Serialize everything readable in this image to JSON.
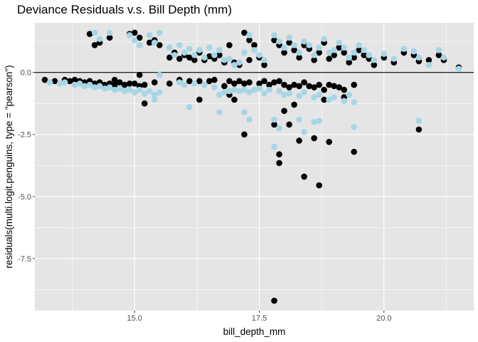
{
  "chart_data": {
    "type": "scatter",
    "title": "Deviance Residuals v.s. Bill Depth (mm)",
    "xlabel": "bill_depth_mm",
    "ylabel": "residuals(multi.logit.penguins, type = \"pearson\")",
    "xlim": [
      13.0,
      21.8
    ],
    "ylim": [
      -9.6,
      2.0
    ],
    "x_ticks": [
      15.0,
      17.5,
      20.0
    ],
    "x_tick_labels": [
      "15.0",
      "17.5",
      "20.0"
    ],
    "y_ticks": [
      0.0,
      -2.5,
      -5.0,
      -7.5
    ],
    "y_tick_labels": [
      "0.0",
      "-2.5",
      "-5.0",
      "-7.5"
    ],
    "grid": true,
    "hline": 0,
    "colors": {
      "panel_bg": "#e5e5e5",
      "grid": "#ffffff",
      "series_a": "#000000",
      "series_b": "#a6d6e6"
    },
    "series": [
      {
        "color": "#000000",
        "points": [
          [
            13.2,
            -0.3
          ],
          [
            13.4,
            -0.35
          ],
          [
            13.6,
            -0.3
          ],
          [
            13.7,
            -0.35
          ],
          [
            13.8,
            -0.3
          ],
          [
            13.9,
            -0.35
          ],
          [
            14.0,
            -0.4
          ],
          [
            14.1,
            -0.35
          ],
          [
            14.2,
            -0.45
          ],
          [
            14.3,
            -0.4
          ],
          [
            14.4,
            -0.5
          ],
          [
            14.5,
            -0.45
          ],
          [
            14.6,
            -0.5
          ],
          [
            14.7,
            -0.4
          ],
          [
            14.8,
            -0.5
          ],
          [
            14.9,
            -0.45
          ],
          [
            15.0,
            -0.45
          ],
          [
            15.1,
            -0.55
          ],
          [
            15.2,
            -0.5
          ],
          [
            15.1,
            -0.1
          ],
          [
            15.4,
            -0.4
          ],
          [
            15.7,
            -0.45
          ],
          [
            15.9,
            -0.3
          ],
          [
            16.1,
            -0.35
          ],
          [
            16.3,
            -0.35
          ],
          [
            16.6,
            -0.3
          ],
          [
            16.8,
            -0.55
          ],
          [
            16.9,
            -0.35
          ],
          [
            17.0,
            -0.45
          ],
          [
            17.1,
            -0.35
          ],
          [
            17.2,
            -0.45
          ],
          [
            17.3,
            -0.4
          ],
          [
            17.5,
            -0.45
          ],
          [
            17.6,
            -0.35
          ],
          [
            17.7,
            -0.5
          ],
          [
            17.8,
            -0.4
          ],
          [
            17.9,
            -0.35
          ],
          [
            18.0,
            -0.5
          ],
          [
            18.1,
            -0.6
          ],
          [
            18.2,
            -0.5
          ],
          [
            18.3,
            -0.55
          ],
          [
            18.4,
            -0.4
          ],
          [
            18.5,
            -0.55
          ],
          [
            18.6,
            -0.6
          ],
          [
            18.7,
            -0.5
          ],
          [
            18.8,
            -0.7
          ],
          [
            18.9,
            -0.5
          ],
          [
            19.0,
            -0.55
          ],
          [
            19.1,
            -0.6
          ],
          [
            19.2,
            -0.7
          ],
          [
            19.4,
            -0.5
          ],
          [
            14.6,
            -0.3
          ],
          [
            16.5,
            -0.35
          ],
          [
            15.2,
            -1.25
          ],
          [
            16.9,
            -0.9
          ],
          [
            17.0,
            -1.1
          ],
          [
            16.3,
            -1.1
          ],
          [
            18.0,
            -1.55
          ],
          [
            18.2,
            -1.3
          ],
          [
            18.8,
            -1.1
          ],
          [
            19.2,
            -1.0
          ],
          [
            17.2,
            -2.5
          ],
          [
            17.8,
            -2.1
          ],
          [
            18.1,
            -2.1
          ],
          [
            18.3,
            -2.75
          ],
          [
            18.6,
            -2.65
          ],
          [
            18.9,
            -2.8
          ],
          [
            19.4,
            -3.2
          ],
          [
            17.9,
            -3.3
          ],
          [
            17.9,
            -3.65
          ],
          [
            18.4,
            -4.2
          ],
          [
            18.7,
            -4.55
          ],
          [
            17.8,
            -9.2
          ],
          [
            20.7,
            -2.3
          ],
          [
            14.1,
            1.55
          ],
          [
            14.2,
            1.1
          ],
          [
            14.3,
            1.2
          ],
          [
            14.5,
            1.4
          ],
          [
            14.9,
            1.55
          ],
          [
            15.0,
            1.6
          ],
          [
            15.1,
            1.4
          ],
          [
            15.3,
            1.2
          ],
          [
            15.4,
            1.3
          ],
          [
            15.5,
            1.1
          ],
          [
            15.7,
            0.6
          ],
          [
            15.8,
            0.8
          ],
          [
            15.9,
            0.55
          ],
          [
            16.0,
            0.7
          ],
          [
            16.1,
            0.6
          ],
          [
            16.2,
            0.5
          ],
          [
            16.3,
            0.8
          ],
          [
            16.4,
            0.5
          ],
          [
            16.5,
            0.65
          ],
          [
            16.6,
            0.55
          ],
          [
            16.7,
            0.7
          ],
          [
            16.8,
            0.4
          ],
          [
            16.9,
            1.1
          ],
          [
            17.0,
            0.4
          ],
          [
            17.1,
            0.3
          ],
          [
            17.3,
            0.5
          ],
          [
            17.2,
            1.6
          ],
          [
            17.3,
            1.3
          ],
          [
            17.4,
            1.1
          ],
          [
            17.5,
            0.6
          ],
          [
            17.6,
            0.3
          ],
          [
            17.8,
            1.3
          ],
          [
            17.9,
            1.1
          ],
          [
            18.0,
            0.8
          ],
          [
            18.1,
            1.2
          ],
          [
            18.2,
            0.9
          ],
          [
            18.3,
            0.6
          ],
          [
            18.4,
            1.1
          ],
          [
            18.5,
            0.95
          ],
          [
            18.6,
            0.5
          ],
          [
            18.7,
            0.8
          ],
          [
            18.8,
            1.2
          ],
          [
            18.9,
            0.55
          ],
          [
            19.0,
            0.7
          ],
          [
            19.1,
            1.0
          ],
          [
            19.2,
            0.8
          ],
          [
            19.3,
            0.4
          ],
          [
            19.4,
            0.6
          ],
          [
            19.5,
            0.9
          ],
          [
            19.6,
            0.7
          ],
          [
            19.7,
            0.55
          ],
          [
            19.8,
            0.3
          ],
          [
            20.0,
            0.6
          ],
          [
            20.2,
            0.4
          ],
          [
            20.4,
            0.8
          ],
          [
            20.6,
            0.7
          ],
          [
            20.7,
            0.45
          ],
          [
            20.9,
            0.5
          ],
          [
            21.1,
            0.7
          ],
          [
            21.2,
            0.5
          ],
          [
            21.5,
            0.2
          ]
        ]
      },
      {
        "color": "#a6d6e6",
        "points": [
          [
            13.3,
            -0.4
          ],
          [
            13.5,
            -0.45
          ],
          [
            13.6,
            -0.4
          ],
          [
            13.8,
            -0.5
          ],
          [
            13.9,
            -0.45
          ],
          [
            14.0,
            -0.55
          ],
          [
            14.1,
            -0.5
          ],
          [
            14.2,
            -0.6
          ],
          [
            14.3,
            -0.55
          ],
          [
            14.4,
            -0.65
          ],
          [
            14.5,
            -0.6
          ],
          [
            14.6,
            -0.7
          ],
          [
            14.7,
            -0.65
          ],
          [
            14.8,
            -0.75
          ],
          [
            14.9,
            -0.7
          ],
          [
            15.0,
            -0.8
          ],
          [
            15.1,
            -0.7
          ],
          [
            15.2,
            -0.85
          ],
          [
            15.3,
            -0.75
          ],
          [
            15.4,
            -0.9
          ],
          [
            15.5,
            -0.8
          ],
          [
            15.5,
            -0.1
          ],
          [
            15.9,
            -0.4
          ],
          [
            16.0,
            -0.5
          ],
          [
            16.2,
            -0.45
          ],
          [
            16.4,
            -0.5
          ],
          [
            16.6,
            -0.6
          ],
          [
            16.7,
            -0.9
          ],
          [
            16.8,
            -0.8
          ],
          [
            16.9,
            -0.75
          ],
          [
            17.0,
            -0.7
          ],
          [
            17.1,
            -0.75
          ],
          [
            17.2,
            -0.7
          ],
          [
            17.3,
            -0.8
          ],
          [
            17.4,
            -0.7
          ],
          [
            17.5,
            -0.65
          ],
          [
            17.6,
            -0.85
          ],
          [
            17.7,
            -0.7
          ],
          [
            17.9,
            -0.75
          ],
          [
            18.0,
            -0.9
          ],
          [
            18.1,
            -0.85
          ],
          [
            18.3,
            -0.95
          ],
          [
            18.4,
            -0.8
          ],
          [
            18.6,
            -1.0
          ],
          [
            18.7,
            -0.9
          ],
          [
            18.9,
            -1.1
          ],
          [
            19.0,
            -1.0
          ],
          [
            19.2,
            -1.15
          ],
          [
            19.3,
            -0.9
          ],
          [
            19.4,
            -1.2
          ],
          [
            15.4,
            -1.1
          ],
          [
            16.1,
            -1.4
          ],
          [
            16.7,
            -1.6
          ],
          [
            17.2,
            -1.6
          ],
          [
            17.3,
            -1.9
          ],
          [
            17.8,
            -1.9
          ],
          [
            17.9,
            -2.25
          ],
          [
            18.3,
            -1.9
          ],
          [
            18.4,
            -2.4
          ],
          [
            18.6,
            -2.0
          ],
          [
            18.7,
            -1.95
          ],
          [
            19.4,
            -2.2
          ],
          [
            17.8,
            -3.0
          ],
          [
            20.7,
            -1.95
          ],
          [
            14.2,
            1.6
          ],
          [
            14.3,
            1.35
          ],
          [
            14.5,
            1.6
          ],
          [
            14.9,
            1.5
          ],
          [
            15.0,
            1.3
          ],
          [
            15.1,
            1.1
          ],
          [
            15.3,
            1.5
          ],
          [
            15.4,
            1.2
          ],
          [
            15.5,
            1.6
          ],
          [
            15.7,
            1.0
          ],
          [
            15.8,
            0.7
          ],
          [
            15.9,
            1.1
          ],
          [
            16.0,
            0.8
          ],
          [
            16.1,
            0.95
          ],
          [
            16.2,
            0.7
          ],
          [
            16.3,
            0.9
          ],
          [
            16.4,
            0.6
          ],
          [
            16.5,
            1.0
          ],
          [
            16.6,
            0.7
          ],
          [
            16.7,
            0.9
          ],
          [
            16.8,
            0.5
          ],
          [
            16.9,
            0.55
          ],
          [
            17.0,
            0.3
          ],
          [
            17.1,
            0.4
          ],
          [
            17.2,
            0.8
          ],
          [
            17.3,
            1.5
          ],
          [
            17.4,
            0.9
          ],
          [
            17.5,
            0.7
          ],
          [
            17.6,
            0.5
          ],
          [
            17.8,
            1.5
          ],
          [
            17.9,
            1.25
          ],
          [
            18.0,
            1.0
          ],
          [
            18.1,
            1.4
          ],
          [
            18.2,
            1.1
          ],
          [
            18.3,
            0.8
          ],
          [
            18.4,
            1.25
          ],
          [
            18.5,
            1.1
          ],
          [
            18.6,
            0.7
          ],
          [
            18.7,
            1.0
          ],
          [
            18.8,
            1.35
          ],
          [
            18.9,
            0.8
          ],
          [
            19.0,
            0.9
          ],
          [
            19.1,
            1.2
          ],
          [
            19.2,
            1.0
          ],
          [
            19.3,
            0.6
          ],
          [
            19.4,
            0.8
          ],
          [
            19.5,
            1.1
          ],
          [
            19.6,
            0.9
          ],
          [
            19.7,
            0.7
          ],
          [
            19.8,
            0.5
          ],
          [
            20.0,
            0.75
          ],
          [
            20.2,
            0.55
          ],
          [
            20.4,
            0.95
          ],
          [
            20.6,
            0.85
          ],
          [
            20.7,
            0.6
          ],
          [
            20.9,
            0.3
          ],
          [
            21.1,
            0.9
          ],
          [
            21.2,
            0.6
          ],
          [
            21.5,
            0.15
          ]
        ]
      }
    ]
  }
}
